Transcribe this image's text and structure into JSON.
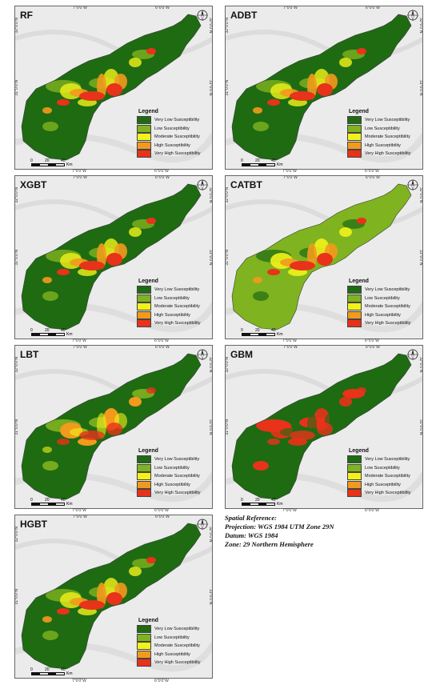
{
  "panels": [
    {
      "title": "RF",
      "scheme": "rf"
    },
    {
      "title": "ADBT",
      "scheme": "rf"
    },
    {
      "title": "XGBT",
      "scheme": "rf"
    },
    {
      "title": "CATBT",
      "scheme": "cat"
    },
    {
      "title": "LBT",
      "scheme": "lbt"
    },
    {
      "title": "GBM",
      "scheme": "gbm"
    },
    {
      "title": "HGBT",
      "scheme": "rf"
    }
  ],
  "coords": {
    "lon1": "7°0'0\"W",
    "lon2": "6°0'0\"W",
    "lat1": "32°0'0\"N",
    "lat2": "31°0'0\"N"
  },
  "legend": {
    "title": "Legend",
    "classes": [
      {
        "label": "Very Low Susceptibility",
        "color": "#1e6b12"
      },
      {
        "label": "Low Susceptibility",
        "color": "#7fb31f"
      },
      {
        "label": "Moderate Susceptibility",
        "color": "#f2f21a"
      },
      {
        "label": "High Susceptibility",
        "color": "#f29a1d"
      },
      {
        "label": "Very High Susceptibility",
        "color": "#e8321a"
      }
    ]
  },
  "scale": {
    "t0": "0",
    "t1": "20",
    "t2": "40",
    "unit": "Km"
  },
  "spatial_reference": [
    "Spatial Reference:",
    "Projection: WGS 1984 UTM Zone 29N",
    "Datum: WGS 1984",
    "Zone: 29 Northern Hemisphere"
  ]
}
